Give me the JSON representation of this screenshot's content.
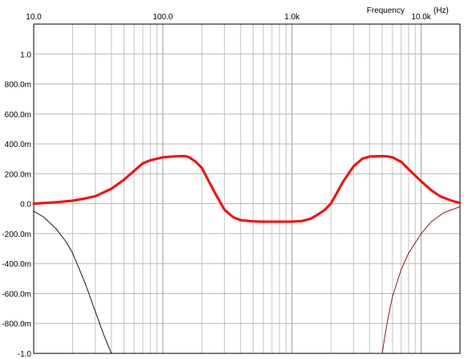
{
  "chart_data": {
    "type": "line",
    "xlabel": "Frequency",
    "xunit": "(Hz)",
    "x_scale": "log",
    "xlim": [
      10,
      20000
    ],
    "ylim": [
      -1.0,
      1.2
    ],
    "grid": true,
    "x_tick_labels": [
      {
        "value": 10,
        "label": "10.0"
      },
      {
        "value": 100,
        "label": "100.0"
      },
      {
        "value": 1000,
        "label": "1.0k"
      },
      {
        "value": 10000,
        "label": "10.0k"
      }
    ],
    "y_tick_labels": [
      {
        "value": 1.0,
        "label": "1.0"
      },
      {
        "value": 0.8,
        "label": "800.0m"
      },
      {
        "value": 0.6,
        "label": "600.0m"
      },
      {
        "value": 0.4,
        "label": "400.0m"
      },
      {
        "value": 0.2,
        "label": "200.0m"
      },
      {
        "value": 0.0,
        "label": "0.0"
      },
      {
        "value": -0.2,
        "label": "-200.0m"
      },
      {
        "value": -0.4,
        "label": "-400.0m"
      },
      {
        "value": -0.6,
        "label": "-600.0m"
      },
      {
        "value": -0.8,
        "label": "-800.0m"
      },
      {
        "value": -1.0,
        "label": "-1.0"
      }
    ],
    "series": [
      {
        "color": "#ff0000",
        "stroke": "thick",
        "x": [
          10,
          15,
          20,
          25,
          30,
          40,
          50,
          60,
          70,
          80,
          100,
          120,
          140,
          150,
          160,
          180,
          200,
          250,
          300,
          350,
          400,
          500,
          600,
          800,
          1000,
          1200,
          1400,
          1600,
          1800,
          2000,
          2500,
          3000,
          3500,
          4000,
          5000,
          5500,
          6000,
          7000,
          8000,
          10000,
          12000,
          14000,
          16000,
          18000,
          20000
        ],
        "y": [
          0.0,
          0.01,
          0.02,
          0.035,
          0.05,
          0.1,
          0.16,
          0.22,
          0.27,
          0.29,
          0.31,
          0.315,
          0.318,
          0.318,
          0.31,
          0.28,
          0.24,
          0.08,
          -0.04,
          -0.09,
          -0.11,
          -0.118,
          -0.12,
          -0.12,
          -0.12,
          -0.115,
          -0.1,
          -0.07,
          -0.04,
          0.0,
          0.15,
          0.25,
          0.3,
          0.315,
          0.318,
          0.316,
          0.31,
          0.28,
          0.23,
          0.15,
          0.09,
          0.05,
          0.03,
          0.015,
          0.005
        ]
      },
      {
        "color": "#000000",
        "stroke": "thin",
        "x": [
          10,
          12,
          15,
          18,
          20,
          25,
          30,
          35,
          40
        ],
        "y": [
          -0.05,
          -0.09,
          -0.17,
          -0.26,
          -0.33,
          -0.53,
          -0.72,
          -0.88,
          -1.0
        ]
      },
      {
        "color": "#8b0000",
        "stroke": "thin",
        "x": [
          5000,
          5200,
          5500,
          6000,
          7000,
          8000,
          10000,
          12000,
          15000,
          20000
        ],
        "y": [
          -1.0,
          -0.9,
          -0.78,
          -0.62,
          -0.44,
          -0.33,
          -0.2,
          -0.12,
          -0.06,
          -0.02
        ]
      }
    ]
  }
}
